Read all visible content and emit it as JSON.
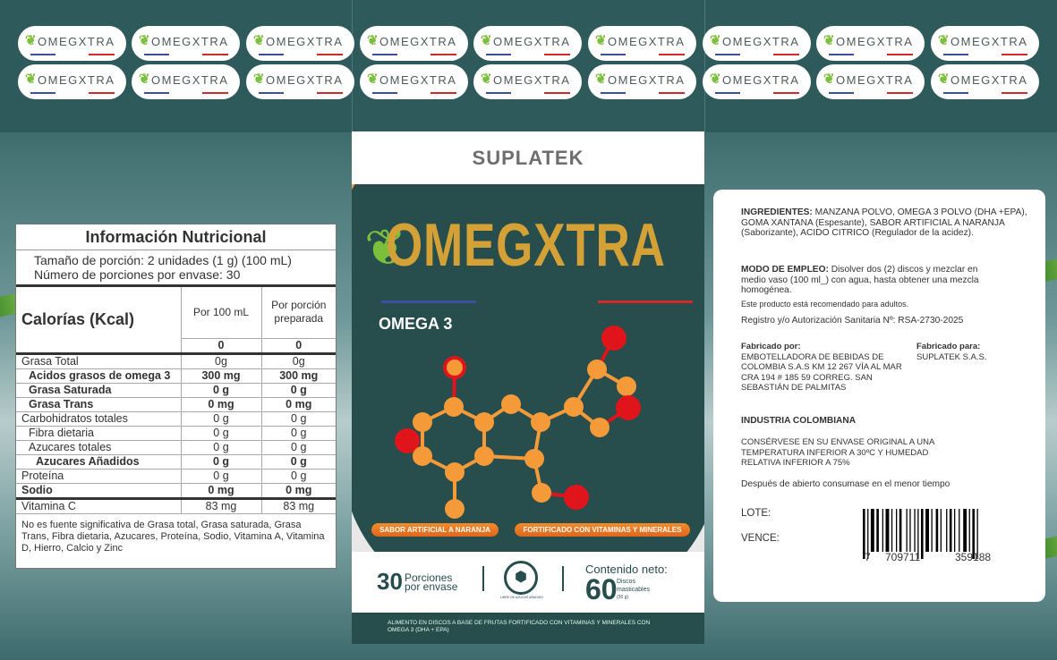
{
  "labels": {
    "brand": "OMEGXTRA",
    "count": 18
  },
  "nutrition": {
    "title": "Información Nutricional",
    "serving": "Tamaño de porción: 2 unidades (1 g) (100 mL)",
    "servings_per": "Número de porciones por envase: 30",
    "calories_label": "Calorías (Kcal)",
    "col1": "Por 100 mL",
    "col2": "Por porción preparada",
    "cal1": "0",
    "cal2": "0",
    "rows": [
      {
        "name": "Grasa Total",
        "a": "0g",
        "b": "0g",
        "bold": false,
        "indent": 0
      },
      {
        "name": "Acidos grasos de omega 3",
        "a": "300 mg",
        "b": "300 mg",
        "bold": true,
        "indent": 1
      },
      {
        "name": "Grasa Saturada",
        "a": "0 g",
        "b": "0 g",
        "bold": true,
        "indent": 1
      },
      {
        "name": "Grasa Trans",
        "a": "0 mg",
        "b": "0 mg",
        "bold": true,
        "indent": 1
      },
      {
        "name": "Carbohidratos totales",
        "a": "0 g",
        "b": "0 g",
        "bold": false,
        "indent": 0
      },
      {
        "name": "Fibra dietaria",
        "a": "0 g",
        "b": "0 g",
        "bold": false,
        "indent": 1
      },
      {
        "name": "Azucares totales",
        "a": "0 g",
        "b": "0 g",
        "bold": false,
        "indent": 1
      },
      {
        "name": "Azucares Añadidos",
        "a": "0 g",
        "b": "0 g",
        "bold": true,
        "indent": 2
      },
      {
        "name": "Proteína",
        "a": "0 g",
        "b": "0 g",
        "bold": false,
        "indent": 0
      },
      {
        "name": "Sodio",
        "a": "0 mg",
        "b": "0 mg",
        "bold": true,
        "indent": 0
      },
      {
        "name": "Vitamina C",
        "a": "83 mg",
        "b": "83 mg",
        "bold": false,
        "indent": 0
      }
    ],
    "footnote": "No es fuente significativa de Grasa total, Grasa saturada, Grasa Trans, Fibra dietaria, Azucares, Proteína, Sodio, Vitamina A, Vitamina D, Hierro, Calcio y Zinc"
  },
  "front": {
    "company": "SUPLATEK",
    "brand": "OMEGXTRA",
    "subtitle": "OMEGA 3",
    "badge1": "SABOR ARTIFICIAL A NARANJA",
    "badge2": "FORTIFICADO CON VITAMINAS Y MINERALES",
    "portions_num": "30",
    "portions_text1": "Porciones",
    "portions_text2": "por envase",
    "sugar_free": "LIBRE DE AZÚCAR AÑADIDO",
    "net_label": "Contenido neto:",
    "net_num": "60",
    "net_unit1": "Discos",
    "net_unit2": "masticables",
    "net_weight": "(30 g)",
    "description": "ALIMENTO EN DISCOS A BASE DE FRUTAS FORTIFICADO CON VITAMINAS Y MINERALES CON OMEGA 3 (DHA + EPA)"
  },
  "back": {
    "ing_label": "INGREDIENTES:",
    "ing": " MANZANA POLVO, OMEGA 3 POLVO (DHA +EPA), GOMA XANTANA (Espesante), SABOR ARTIFICIAL A NARANJA (Saborizante), ACIDO CITRICO (Regulador de la acidez).",
    "use_label": "MODO DE EMPLEO:",
    "use": " Disolver dos (2) discos y mezclar en medio vaso (100 ml_) con agua, hasta obtener una mezcla homogénea.",
    "adults": "Este producto está recomendado para adultos.",
    "registry": "Registro y/o Autorización Sanitaria Nº: RSA-2730-2025",
    "made_by_label": "Fabricado por:",
    "made_by": "EMBOTELLADORA DE BEBIDAS DE COLOMBIA S.A.S KM 12 267 VÍA AL MAR CRA 194 # 185 59 CORREG. SAN SEBASTIÁN DE PALMITAS",
    "made_for_label": "Fabricado para:",
    "made_for": "SUPLATEK S.A.S.",
    "industry": "INDUSTRIA COLOMBIANA",
    "storage": "CONSÉRVESE EN SU ENVASE ORIGINAL A UNA TEMPERATURA INFERIOR A 30ºC Y HUMEDAD RELATIVA INFERIOR A 75%",
    "after_open": "Después de abierto consumase en el menor tiempo",
    "lote": "LOTE:",
    "vence": "VENCE:",
    "barcode_d1": "7",
    "barcode_d2": "709711",
    "barcode_d3": "359188"
  },
  "colors": {
    "teal": "#284d4d",
    "gold": "#d4a137",
    "green": "#7bbf3c",
    "orange": "#f0922e",
    "red": "#e0141b",
    "blue": "#3b4ea0"
  }
}
